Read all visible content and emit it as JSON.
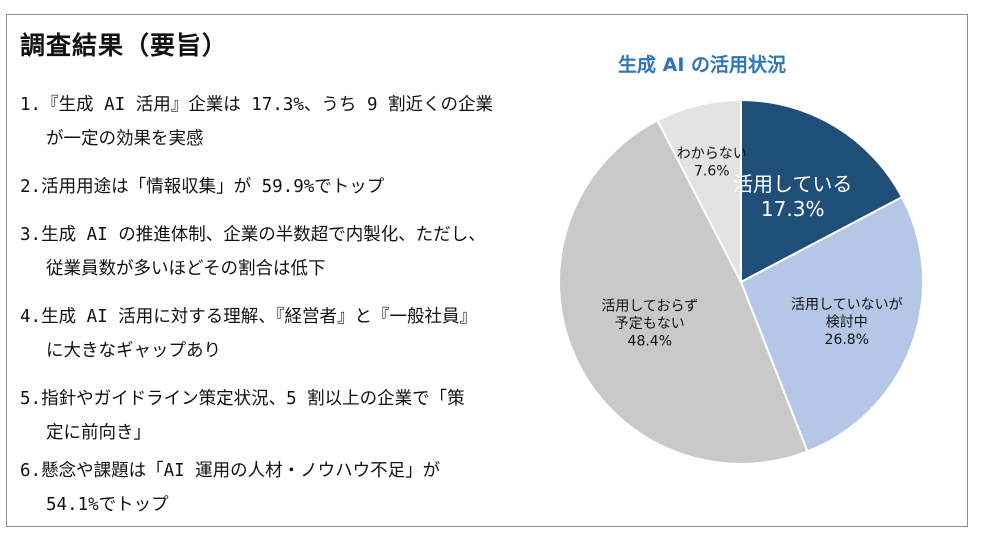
{
  "heading": "調査結果（要旨）",
  "findings": [
    {
      "line1": "1.『生成 AI 活用』企業は 17.3%、うち 9 割近くの企業",
      "line2": "が一定の効果を実感"
    },
    {
      "line1": "2.活用用途は「情報収集」が 59.9%でトップ",
      "line2": ""
    },
    {
      "line1": "3.生成 AI の推進体制、企業の半数超で内製化、ただし、",
      "line2": "従業員数が多いほどその割合は低下"
    },
    {
      "line1": "4.生成 AI 活用に対する理解、『経営者』と『一般社員』",
      "line2": "に大きなギャップあり"
    },
    {
      "line1": "5.指針やガイドライン策定状況、5 割以上の企業で「策",
      "line2": "定に前向き」"
    },
    {
      "line1": "6.懸念や課題は「AI 運用の人材・ノウハウ不足」が",
      "line2": "54.1%でトップ"
    }
  ],
  "chart_data": {
    "type": "pie",
    "title": "生成 AI の活用状況",
    "start_angle_deg": 0,
    "direction": "clockwise",
    "slices": [
      {
        "label_lines": [
          "活用している"
        ],
        "value": 17.3,
        "value_text": "17.3%",
        "color": "#1f4e79",
        "text_color": "#ffffff"
      },
      {
        "label_lines": [
          "活用していないが",
          "検討中"
        ],
        "value": 26.8,
        "value_text": "26.8%",
        "color": "#b4c7e7",
        "text_color": "#111111"
      },
      {
        "label_lines": [
          "活用しておらず",
          "予定もない"
        ],
        "value": 48.4,
        "value_text": "48.4%",
        "color": "#c9c9c9",
        "text_color": "#111111"
      },
      {
        "label_lines": [
          "わからない"
        ],
        "value": 7.6,
        "value_text": "7.6%",
        "color": "#e3e3e3",
        "text_color": "#111111"
      }
    ]
  }
}
